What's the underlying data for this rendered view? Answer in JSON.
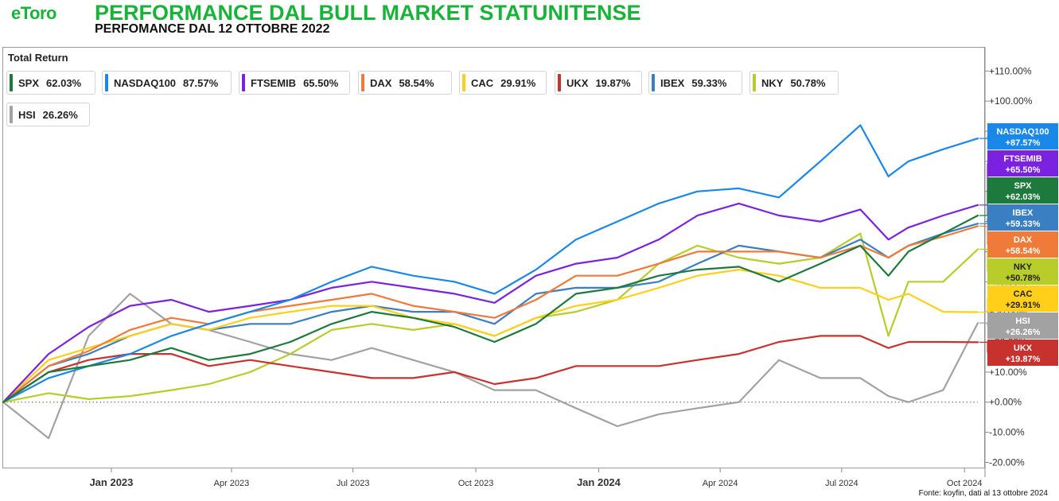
{
  "header": {
    "logo": "eToro",
    "title": "PERFORMANCE DAL BULL MARKET STATUNITENSE",
    "subtitle": "PERFOMANCE DAL 12 OTTOBRE 2022"
  },
  "footer": {
    "source": "Fonte: koyfin, dati al 13 ottobre 2024"
  },
  "chart_data": {
    "type": "line",
    "title": "PERFORMANCE DAL BULL MARKET STATUNITENSE",
    "subtitle": "PERFOMANCE DAL 12 OTTOBRE 2022",
    "panel_title": "Total Return",
    "x_ticks": [
      "Jan 2023",
      "Apr 2023",
      "Jul 2023",
      "Oct 2023",
      "Jan 2024",
      "Apr 2024",
      "Jul 2024",
      "Oct 2024"
    ],
    "x_range": [
      "2022-10-12",
      "2024-10-11"
    ],
    "y_ticks": [
      "+110.00%",
      "+100.00%",
      "+90.00%",
      "+80.00%",
      "+70.00%",
      "+60.00%",
      "+50.00%",
      "+40.00%",
      "+30.00%",
      "+20.00%",
      "+10.00%",
      "+0.00%",
      "-10.00%",
      "-20.00%"
    ],
    "y_range": [
      -22,
      118
    ],
    "y_unit": "%",
    "zero_line": "dotted",
    "legend_placement": "top-left",
    "grid": false,
    "x": [
      "2022-10-12",
      "2022-11-15",
      "2022-12-15",
      "2023-01-15",
      "2023-02-15",
      "2023-03-15",
      "2023-04-15",
      "2023-05-15",
      "2023-06-15",
      "2023-07-15",
      "2023-08-15",
      "2023-09-15",
      "2023-10-15",
      "2023-11-15",
      "2023-12-15",
      "2024-01-15",
      "2024-02-15",
      "2024-03-15",
      "2024-04-15",
      "2024-05-15",
      "2024-06-15",
      "2024-07-15",
      "2024-08-05",
      "2024-08-20",
      "2024-09-15",
      "2024-10-11"
    ],
    "series": [
      {
        "name": "SPX",
        "final": "62.03%",
        "label_value": "+62.03%",
        "color": "#1e7a3c",
        "values": [
          0,
          10,
          12,
          14,
          18,
          14,
          16,
          20,
          26,
          30,
          28,
          25,
          20,
          26,
          36,
          38,
          42,
          44,
          45,
          40,
          46,
          52,
          42,
          50,
          56,
          62
        ]
      },
      {
        "name": "NASDAQ100",
        "final": "87.57%",
        "label_value": "+87.57%",
        "color": "#1a88e8",
        "values": [
          0,
          8,
          12,
          16,
          22,
          26,
          30,
          34,
          40,
          45,
          42,
          40,
          36,
          44,
          54,
          60,
          66,
          70,
          71,
          68,
          80,
          92,
          75,
          80,
          84,
          87.6
        ]
      },
      {
        "name": "FTSEMIB",
        "final": "65.50%",
        "label_value": "+65.50%",
        "color": "#7b22e0",
        "values": [
          0,
          16,
          25,
          32,
          34,
          30,
          32,
          34,
          38,
          40,
          38,
          36,
          33,
          42,
          46,
          48,
          54,
          62,
          66,
          62,
          60,
          64,
          54,
          58,
          62,
          65.5
        ]
      },
      {
        "name": "DAX",
        "final": "58.54%",
        "label_value": "+58.54%",
        "color": "#f07a3a",
        "values": [
          0,
          12,
          17,
          24,
          28,
          26,
          30,
          32,
          34,
          36,
          32,
          30,
          28,
          34,
          42,
          42,
          46,
          50,
          50,
          50,
          48,
          52,
          48,
          52,
          55,
          58.5
        ]
      },
      {
        "name": "CAC",
        "final": "29.91%",
        "label_value": "+29.91%",
        "color": "#ffcf1a",
        "values": [
          0,
          14,
          18,
          22,
          26,
          24,
          28,
          30,
          32,
          32,
          28,
          26,
          22,
          28,
          32,
          34,
          38,
          42,
          44,
          42,
          38,
          38,
          34,
          36,
          30,
          29.9
        ]
      },
      {
        "name": "UKX",
        "final": "19.87%",
        "label_value": "+19.87%",
        "color": "#c8322e",
        "values": [
          0,
          10,
          14,
          16,
          16,
          12,
          14,
          12,
          10,
          8,
          8,
          10,
          6,
          8,
          12,
          12,
          12,
          14,
          16,
          20,
          22,
          22,
          18,
          20,
          20,
          19.9
        ]
      },
      {
        "name": "IBEX",
        "final": "59.33%",
        "label_value": "+59.33%",
        "color": "#3a7fc2",
        "values": [
          0,
          12,
          16,
          22,
          26,
          24,
          26,
          26,
          30,
          32,
          30,
          30,
          26,
          36,
          38,
          38,
          40,
          46,
          52,
          50,
          48,
          54,
          48,
          52,
          56,
          59.3
        ]
      },
      {
        "name": "NKY",
        "final": "50.78%",
        "label_value": "+50.78%",
        "color": "#b8cc2a",
        "values": [
          0,
          3,
          1,
          2,
          4,
          6,
          10,
          16,
          24,
          26,
          24,
          26,
          22,
          28,
          30,
          34,
          46,
          52,
          48,
          46,
          48,
          56,
          22,
          40,
          40,
          50.8
        ]
      },
      {
        "name": "HSI",
        "final": "26.26%",
        "label_value": "+26.26%",
        "color": "#a2a2a2",
        "values": [
          0,
          -12,
          22,
          36,
          26,
          24,
          20,
          16,
          14,
          18,
          14,
          10,
          4,
          4,
          -2,
          -8,
          -4,
          -2,
          0,
          14,
          8,
          8,
          2,
          0,
          4,
          26.3
        ]
      }
    ]
  }
}
